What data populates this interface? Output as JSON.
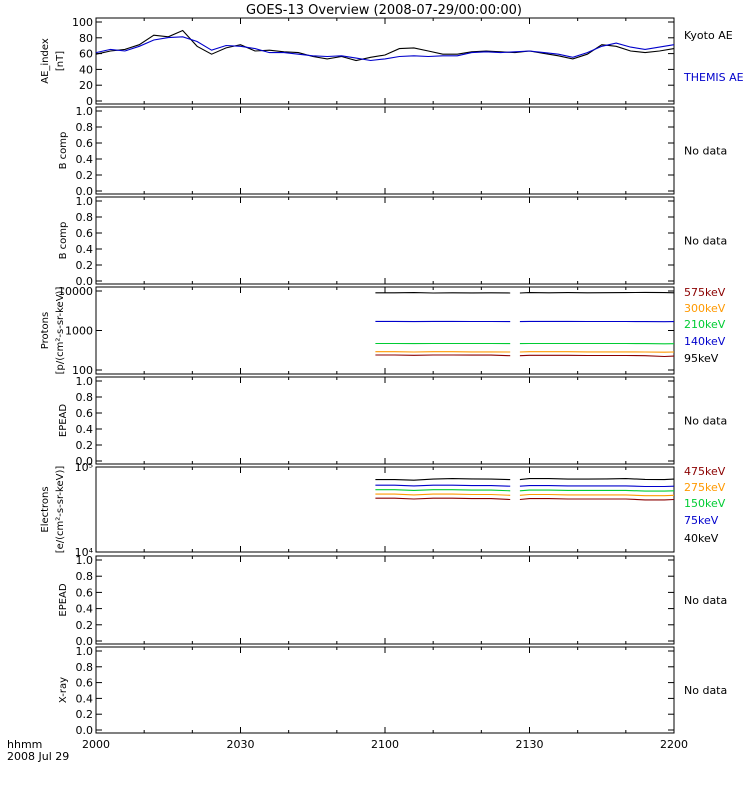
{
  "title": "GOES-13 Overview (2008-07-29/00:00:00)",
  "x_axis": {
    "ticks": [
      "2000",
      "2030",
      "2100",
      "2130",
      "2200"
    ],
    "corner_label": [
      "hhmm",
      "2008 Jul 29"
    ]
  },
  "panels": [
    {
      "id": "ae",
      "ylabel": [
        "AE_index",
        "[nT]"
      ],
      "ticks": [
        "100",
        "80",
        "60",
        "40",
        "20",
        "0"
      ],
      "legend": [
        {
          "text": "Kyoto AE",
          "color": "#000000"
        },
        {
          "text": "THEMIS AE",
          "color": "#0000cc"
        }
      ]
    },
    {
      "id": "bcomp1",
      "ylabel": [
        "B comp"
      ],
      "ticks": [
        "1.0",
        "0.8",
        "0.6",
        "0.4",
        "0.2",
        "0.0"
      ],
      "legend": [
        {
          "text": "No data",
          "color": "#000000"
        }
      ]
    },
    {
      "id": "bcomp2",
      "ylabel": [
        "B comp"
      ],
      "ticks": [
        "1.0",
        "0.8",
        "0.6",
        "0.4",
        "0.2",
        "0.0"
      ],
      "legend": [
        {
          "text": "No data",
          "color": "#000000"
        }
      ]
    },
    {
      "id": "protons",
      "ylabel": [
        "Protons",
        "[p/(cm²-s-sr-keV)]"
      ],
      "ticks": [
        "10000",
        "1000",
        "100"
      ],
      "legend": [
        {
          "text": "575keV",
          "color": "#8b0000"
        },
        {
          "text": "300keV",
          "color": "#ff9900"
        },
        {
          "text": "210keV",
          "color": "#00cc33"
        },
        {
          "text": "140keV",
          "color": "#0000cc"
        },
        {
          "text": "95keV",
          "color": "#000000"
        }
      ]
    },
    {
      "id": "epead1",
      "ylabel": [
        "EPEAD"
      ],
      "ticks": [
        "1.0",
        "0.8",
        "0.6",
        "0.4",
        "0.2",
        "0.0"
      ],
      "legend": [
        {
          "text": "No data",
          "color": "#000000"
        }
      ]
    },
    {
      "id": "electrons",
      "ylabel": [
        "Electrons",
        "[e/(cm²-s-sr-keV)]"
      ],
      "ticks": [
        "10⁵",
        "10⁴"
      ],
      "legend": [
        {
          "text": "475keV",
          "color": "#8b0000"
        },
        {
          "text": "275keV",
          "color": "#ff9900"
        },
        {
          "text": "150keV",
          "color": "#00cc33"
        },
        {
          "text": "75keV",
          "color": "#0000cc"
        },
        {
          "text": "40keV",
          "color": "#000000"
        }
      ]
    },
    {
      "id": "epead2",
      "ylabel": [
        "EPEAD"
      ],
      "ticks": [
        "1.0",
        "0.8",
        "0.6",
        "0.4",
        "0.2",
        "0.0"
      ],
      "legend": [
        {
          "text": "No data",
          "color": "#000000"
        }
      ]
    },
    {
      "id": "xray",
      "ylabel": [
        "X-ray"
      ],
      "ticks": [
        "1.0",
        "0.8",
        "0.6",
        "0.4",
        "0.2",
        "0.0"
      ],
      "legend": [
        {
          "text": "No data",
          "color": "#000000"
        }
      ]
    }
  ],
  "chart_data": [
    {
      "type": "line",
      "panel": "ae",
      "xlabel": "hhmm",
      "xlim_minutes_after_2000": [
        0,
        120
      ],
      "ylim": [
        0,
        100
      ],
      "x": [
        0,
        3,
        6,
        9,
        12,
        15,
        18,
        21,
        24,
        27,
        30,
        33,
        36,
        39,
        42,
        45,
        48,
        51,
        54,
        57,
        60,
        63,
        66,
        69,
        72,
        75,
        78,
        81,
        84,
        87,
        90,
        93,
        96,
        99,
        102,
        105,
        108,
        111,
        114,
        117,
        120
      ],
      "series": [
        {
          "name": "Kyoto AE",
          "color": "#000000",
          "values": [
            58,
            62,
            64,
            70,
            82,
            80,
            88,
            68,
            58,
            66,
            70,
            62,
            63,
            61,
            60,
            55,
            52,
            55,
            50,
            54,
            57,
            65,
            66,
            62,
            58,
            58,
            61,
            62,
            61,
            60,
            62,
            59,
            56,
            52,
            58,
            70,
            68,
            62,
            60,
            62,
            65
          ]
        },
        {
          "name": "THEMIS AE",
          "color": "#0000cc",
          "values": [
            60,
            64,
            62,
            68,
            76,
            79,
            80,
            74,
            63,
            69,
            68,
            65,
            60,
            60,
            58,
            56,
            55,
            56,
            53,
            50,
            52,
            55,
            56,
            55,
            56,
            56,
            60,
            61,
            60,
            61,
            62,
            60,
            58,
            54,
            60,
            68,
            72,
            67,
            64,
            67,
            70
          ]
        }
      ]
    },
    {
      "type": "line",
      "panel": "protons",
      "ylabel": "Protons",
      "yscale": "log",
      "ylim": [
        100,
        10000
      ],
      "x": [
        58,
        62,
        66,
        70,
        74,
        78,
        82,
        86,
        88,
        90,
        94,
        98,
        102,
        106,
        110,
        114,
        118,
        120
      ],
      "gaps_after_x": [
        86
      ],
      "series": [
        {
          "name": "575keV",
          "color": "#8b0000",
          "values": [
            240,
            240,
            235,
            240,
            240,
            238,
            238,
            230,
            230,
            235,
            235,
            235,
            233,
            233,
            233,
            230,
            220,
            225
          ]
        },
        {
          "name": "300keV",
          "color": "#ff9900",
          "values": [
            290,
            290,
            285,
            290,
            290,
            288,
            288,
            285,
            285,
            290,
            290,
            290,
            288,
            288,
            288,
            285,
            283,
            285
          ]
        },
        {
          "name": "210keV",
          "color": "#00cc33",
          "values": [
            470,
            470,
            465,
            470,
            470,
            468,
            468,
            465,
            465,
            470,
            470,
            470,
            468,
            468,
            468,
            465,
            460,
            462
          ]
        },
        {
          "name": "140keV",
          "color": "#0000cc",
          "values": [
            1700,
            1700,
            1680,
            1700,
            1700,
            1690,
            1690,
            1680,
            1680,
            1700,
            1700,
            1700,
            1690,
            1690,
            1690,
            1680,
            1670,
            1680
          ]
        },
        {
          "name": "95keV",
          "color": "#000000",
          "values": [
            9000,
            9000,
            9100,
            8900,
            9000,
            8950,
            9000,
            8900,
            8900,
            9100,
            9000,
            9100,
            9000,
            9050,
            9100,
            9200,
            9100,
            9000
          ]
        }
      ]
    },
    {
      "type": "line",
      "panel": "electrons",
      "ylabel": "Electrons",
      "yscale": "log",
      "ylim": [
        10000,
        100000
      ],
      "x": [
        58,
        62,
        66,
        70,
        74,
        78,
        82,
        86,
        88,
        90,
        94,
        98,
        102,
        106,
        110,
        114,
        118,
        120
      ],
      "gaps_after_x": [
        86
      ],
      "series": [
        {
          "name": "475keV",
          "color": "#8b0000",
          "values": [
            43000,
            43000,
            42000,
            43000,
            43000,
            42500,
            42500,
            41500,
            41500,
            42500,
            42500,
            42000,
            42000,
            42000,
            42000,
            41000,
            41000,
            41500
          ]
        },
        {
          "name": "275keV",
          "color": "#ff9900",
          "values": [
            48000,
            48000,
            47000,
            48000,
            48000,
            47500,
            47500,
            46500,
            46500,
            47500,
            47500,
            47000,
            47000,
            47000,
            47000,
            46000,
            46000,
            46500
          ]
        },
        {
          "name": "150keV",
          "color": "#00cc33",
          "values": [
            54000,
            54000,
            53000,
            54000,
            54000,
            53500,
            53500,
            52500,
            52500,
            53500,
            53500,
            53000,
            53000,
            53000,
            53000,
            52000,
            52000,
            52500
          ]
        },
        {
          "name": "75keV",
          "color": "#0000cc",
          "values": [
            61000,
            61000,
            60000,
            61000,
            61000,
            60500,
            60500,
            59500,
            59500,
            60500,
            60500,
            60000,
            60000,
            60000,
            60000,
            59000,
            59000,
            59500
          ]
        },
        {
          "name": "40keV",
          "color": "#000000",
          "values": [
            71000,
            71000,
            70000,
            72000,
            73000,
            72500,
            72000,
            71000,
            71000,
            73000,
            73000,
            72000,
            72000,
            72500,
            73000,
            71500,
            71000,
            72000
          ]
        }
      ]
    }
  ]
}
